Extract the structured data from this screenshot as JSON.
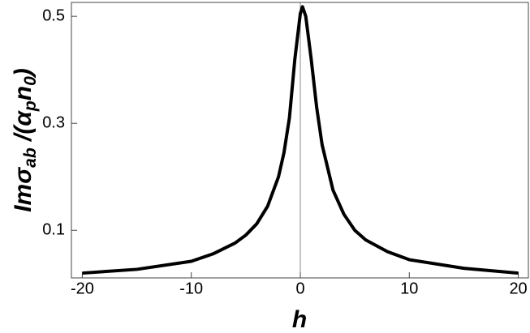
{
  "chart_data": {
    "type": "line",
    "xlabel": "h",
    "ylabel_parts": [
      "Im",
      "σ",
      "ab",
      " /(α",
      "p",
      "n",
      "0",
      ")"
    ],
    "x": [
      -20,
      -15,
      -10,
      -8,
      -6,
      -5,
      -4,
      -3,
      -2,
      -1.5,
      -1,
      -0.5,
      0,
      0.2,
      0.5,
      1,
      1.5,
      2,
      3,
      4,
      5,
      6,
      8,
      10,
      15,
      20
    ],
    "series": [
      {
        "color": "#000000",
        "values": [
          0.02,
          0.027,
          0.042,
          0.056,
          0.076,
          0.091,
          0.112,
          0.145,
          0.2,
          0.245,
          0.31,
          0.42,
          0.505,
          0.518,
          0.5,
          0.42,
          0.33,
          0.26,
          0.175,
          0.13,
          0.1,
          0.082,
          0.06,
          0.045,
          0.029,
          0.02
        ]
      }
    ],
    "xlim": [
      -21,
      21
    ],
    "ylim": [
      0.011,
      0.526
    ],
    "xticks": [
      -20,
      -10,
      0,
      10,
      20
    ],
    "yticks": [
      0.1,
      0.3,
      0.5
    ]
  }
}
